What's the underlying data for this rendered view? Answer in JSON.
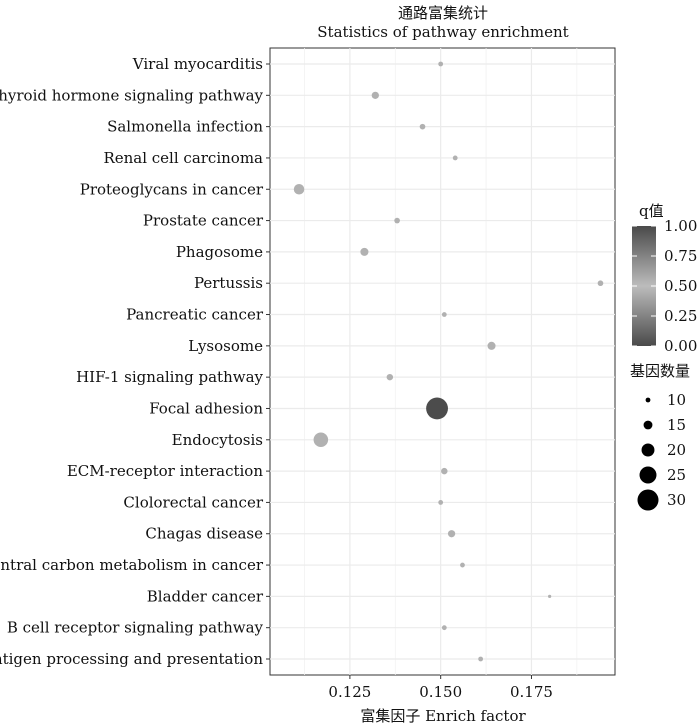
{
  "chart_data": {
    "type": "scatter",
    "title": "通路富集统计",
    "subtitle": "Statistics of pathway enrichment",
    "xlabel": "富集因子  Enrich factor",
    "ylabel": "",
    "xlim": [
      0.103,
      0.198
    ],
    "x_ticks": [
      0.125,
      0.15,
      0.175
    ],
    "x_tick_labels": [
      "0.125",
      "0.150",
      "0.175"
    ],
    "grid": true,
    "points": [
      {
        "pathway": "Viral myocarditis",
        "x": 0.15,
        "genes": 10,
        "q": 0.55
      },
      {
        "pathway": "Thyroid hormone signaling pathway",
        "x": 0.132,
        "genes": 13,
        "q": 0.55
      },
      {
        "pathway": "Salmonella infection",
        "x": 0.145,
        "genes": 11,
        "q": 0.55
      },
      {
        "pathway": "Renal cell carcinoma",
        "x": 0.154,
        "genes": 10,
        "q": 0.55
      },
      {
        "pathway": "Proteoglycans in cancer",
        "x": 0.111,
        "genes": 17,
        "q": 0.55
      },
      {
        "pathway": "Prostate cancer",
        "x": 0.138,
        "genes": 11,
        "q": 0.55
      },
      {
        "pathway": "Phagosome",
        "x": 0.129,
        "genes": 14,
        "q": 0.55
      },
      {
        "pathway": "Pertussis",
        "x": 0.194,
        "genes": 11,
        "q": 0.55
      },
      {
        "pathway": "Pancreatic cancer",
        "x": 0.151,
        "genes": 10,
        "q": 0.55
      },
      {
        "pathway": "Lysosome",
        "x": 0.164,
        "genes": 14,
        "q": 0.55
      },
      {
        "pathway": "HIF-1 signaling pathway",
        "x": 0.136,
        "genes": 12,
        "q": 0.55
      },
      {
        "pathway": "Focal adhesion",
        "x": 0.149,
        "genes": 31,
        "q": 0.01
      },
      {
        "pathway": "Endocytosis",
        "x": 0.117,
        "genes": 22,
        "q": 0.45
      },
      {
        "pathway": "ECM-receptor interaction",
        "x": 0.151,
        "genes": 12,
        "q": 0.55
      },
      {
        "pathway": "Clolorectal cancer",
        "x": 0.15,
        "genes": 10,
        "q": 0.55
      },
      {
        "pathway": "Chagas disease",
        "x": 0.153,
        "genes": 13,
        "q": 0.55
      },
      {
        "pathway": "Central carbon metabolism in cancer",
        "x": 0.156,
        "genes": 10,
        "q": 0.55
      },
      {
        "pathway": "Bladder cancer",
        "x": 0.18,
        "genes": 8,
        "q": 0.55
      },
      {
        "pathway": "B cell receptor signaling pathway",
        "x": 0.151,
        "genes": 10,
        "q": 0.55
      },
      {
        "pathway": "Antigen processing and presentation",
        "x": 0.161,
        "genes": 10,
        "q": 0.55
      }
    ],
    "legend_color": {
      "title": "q值",
      "ticks": [
        1.0,
        0.75,
        0.5,
        0.25,
        0.0
      ],
      "tick_labels": [
        "1.00",
        "0.75",
        "0.50",
        "0.25",
        "0.00"
      ],
      "placement": "right",
      "low_color": "#4a4a4a",
      "mid_color": "#bcbcbc",
      "high_color": "#4a4a4a"
    },
    "legend_size": {
      "title": "基因数量",
      "values": [
        10,
        15,
        20,
        25,
        30
      ],
      "labels": [
        "10",
        "15",
        "20",
        "25",
        "30"
      ],
      "placement": "right"
    },
    "panel_color": "#ffffff",
    "grid_color": "#ebebeb"
  }
}
